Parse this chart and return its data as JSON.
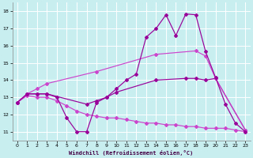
{
  "background_color": "#c8eef0",
  "grid_color": "#ffffff",
  "line_color_dark": "#990099",
  "line_color_light": "#cc44cc",
  "xlabel": "Windchill (Refroidissement éolien,°C)",
  "xlim": [
    -0.5,
    23.5
  ],
  "ylim": [
    10.5,
    18.5
  ],
  "yticks": [
    11,
    12,
    13,
    14,
    15,
    16,
    17,
    18
  ],
  "xticks": [
    0,
    1,
    2,
    3,
    4,
    5,
    6,
    7,
    8,
    9,
    10,
    11,
    12,
    13,
    14,
    15,
    16,
    17,
    18,
    19,
    20,
    21,
    22,
    23
  ],
  "line_jagged_x": [
    0,
    1,
    2,
    3,
    4,
    5,
    6,
    7,
    8,
    9,
    10,
    11,
    12,
    13,
    14,
    15,
    16,
    17,
    18,
    19,
    20,
    21,
    22,
    23
  ],
  "line_jagged_y": [
    12.7,
    13.2,
    13.2,
    13.2,
    13.0,
    11.8,
    11.0,
    11.0,
    12.7,
    13.0,
    13.5,
    14.0,
    14.35,
    16.5,
    17.0,
    17.8,
    16.6,
    17.85,
    17.8,
    15.65,
    14.15,
    12.6,
    11.5,
    11.0
  ],
  "line_diag_up_x": [
    0,
    1,
    2,
    3,
    8,
    14,
    18,
    19,
    20,
    23
  ],
  "line_diag_up_y": [
    12.7,
    13.2,
    13.5,
    13.8,
    14.5,
    15.5,
    15.7,
    15.4,
    14.1,
    11.1
  ],
  "line_mid_x": [
    0,
    1,
    2,
    3,
    7,
    8,
    9,
    10,
    14,
    17,
    18,
    19,
    20,
    23
  ],
  "line_mid_y": [
    12.7,
    13.2,
    13.2,
    13.2,
    12.6,
    12.8,
    13.0,
    13.3,
    14.0,
    14.1,
    14.1,
    14.0,
    14.1,
    11.1
  ],
  "line_low_x": [
    0,
    1,
    2,
    3,
    4,
    5,
    6,
    7,
    8,
    9,
    10,
    11,
    12,
    13,
    14,
    15,
    16,
    17,
    18,
    19,
    20,
    21,
    22,
    23
  ],
  "line_low_y": [
    12.7,
    13.1,
    13.0,
    13.0,
    12.8,
    12.5,
    12.2,
    12.0,
    11.9,
    11.8,
    11.8,
    11.7,
    11.6,
    11.5,
    11.5,
    11.4,
    11.4,
    11.3,
    11.3,
    11.2,
    11.2,
    11.2,
    11.1,
    11.0
  ]
}
